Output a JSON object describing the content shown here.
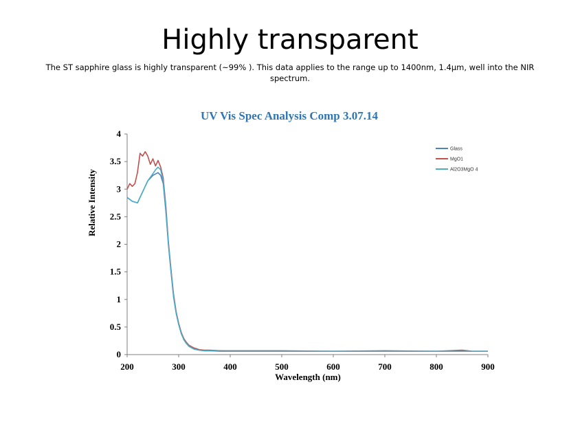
{
  "slide": {
    "title": "Highly transparent",
    "caption": "The ST sapphire glass is highly transparent (~99% ). This data applies to the range up to 1400nm, 1.4µm, well into the NIR spectrum."
  },
  "chart_data": {
    "type": "line",
    "title": "UV Vis Spec Analysis Comp 3.07.14",
    "xlabel": "Wavelength (nm)",
    "ylabel": "Relative Intensity",
    "xlim": [
      200,
      900
    ],
    "ylim": [
      0,
      4
    ],
    "xticks": [
      "200",
      "300",
      "400",
      "500",
      "600",
      "700",
      "800",
      "900"
    ],
    "yticks": [
      "0",
      "0.5",
      "1",
      "1.5",
      "2",
      "2.5",
      "3",
      "3.5",
      "4"
    ],
    "grid": false,
    "legend": "top-right",
    "series": [
      {
        "name": "Glass",
        "color": "#4f81bd",
        "x": [
          200,
          210,
          220,
          230,
          240,
          250,
          260,
          265,
          270,
          275,
          280,
          285,
          290,
          295,
          300,
          305,
          310,
          315,
          320,
          330,
          340,
          350,
          360,
          380,
          400,
          420,
          500,
          600,
          700,
          800,
          900
        ],
        "y": [
          2.85,
          2.78,
          2.75,
          2.95,
          3.15,
          3.25,
          3.3,
          3.25,
          3.1,
          2.6,
          2.0,
          1.5,
          1.05,
          0.75,
          0.55,
          0.38,
          0.27,
          0.2,
          0.15,
          0.1,
          0.08,
          0.07,
          0.07,
          0.07,
          0.06,
          0.06,
          0.06,
          0.06,
          0.06,
          0.06,
          0.06
        ]
      },
      {
        "name": "MgO1",
        "color": "#c0504d",
        "x": [
          200,
          205,
          210,
          215,
          220,
          225,
          230,
          235,
          240,
          245,
          250,
          255,
          260,
          265,
          270,
          275,
          280,
          285,
          290,
          295,
          300,
          305,
          310,
          315,
          320,
          330,
          340,
          350,
          360,
          380,
          400,
          420,
          500,
          600,
          700,
          800,
          850,
          870,
          900
        ],
        "y": [
          3.0,
          3.1,
          3.05,
          3.1,
          3.3,
          3.65,
          3.6,
          3.68,
          3.6,
          3.45,
          3.55,
          3.42,
          3.52,
          3.4,
          3.2,
          2.7,
          2.05,
          1.55,
          1.1,
          0.78,
          0.57,
          0.4,
          0.29,
          0.22,
          0.17,
          0.12,
          0.09,
          0.08,
          0.08,
          0.07,
          0.07,
          0.07,
          0.07,
          0.06,
          0.07,
          0.06,
          0.08,
          0.06,
          0.06
        ]
      },
      {
        "name": "Al2O3MgO 4",
        "color": "#4bacc6",
        "x": [
          200,
          210,
          220,
          230,
          240,
          250,
          255,
          260,
          265,
          270,
          275,
          280,
          285,
          290,
          295,
          300,
          305,
          310,
          315,
          320,
          330,
          340,
          350,
          360,
          380,
          400,
          420,
          500,
          600,
          700,
          800,
          900
        ],
        "y": [
          2.85,
          2.78,
          2.75,
          2.95,
          3.15,
          3.28,
          3.35,
          3.4,
          3.35,
          3.15,
          2.65,
          2.02,
          1.52,
          1.07,
          0.76,
          0.55,
          0.38,
          0.27,
          0.2,
          0.15,
          0.1,
          0.08,
          0.07,
          0.07,
          0.06,
          0.06,
          0.06,
          0.06,
          0.06,
          0.06,
          0.06,
          0.06
        ]
      }
    ]
  }
}
